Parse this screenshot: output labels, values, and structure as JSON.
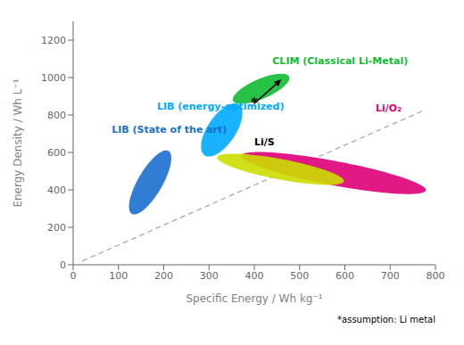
{
  "chart_data": {
    "type": "ellipse",
    "xlabel": "Specific Energy / Wh kg⁻¹",
    "ylabel": "Energy Density / Wh L⁻¹",
    "xlim": [
      0,
      800
    ],
    "ylim": [
      0,
      1300
    ],
    "xticks": [
      0,
      100,
      200,
      300,
      400,
      500,
      600,
      700,
      800
    ],
    "yticks": [
      0,
      200,
      400,
      600,
      800,
      1000,
      1200
    ],
    "footnote": "*assumption: Li metal",
    "ellipses": [
      {
        "name": "LIB (State of the art)",
        "color": "#1a6fce",
        "cx": 170,
        "cy": 440,
        "width": 60,
        "height": 350,
        "angle": -12,
        "label_x": 85,
        "label_y": 720,
        "label_color": "#1a6fce"
      },
      {
        "name": "LIB (energy-optimized)",
        "color": "#00aaff",
        "cx": 328,
        "cy": 720,
        "width": 70,
        "height": 290,
        "angle": -12,
        "label_x": 185,
        "label_y": 845,
        "label_color": "#00aaff"
      },
      {
        "name": "CLIM (Classical Li-Metal)",
        "color": "#11bb33",
        "cx": 415,
        "cy": 940,
        "width": 75,
        "height": 190,
        "angle": -35,
        "label_x": 440,
        "label_y": 1090,
        "label_color": "#11bb33"
      },
      {
        "name": "Li/O₂",
        "color": "#dd0077",
        "cx": 575,
        "cy": 490,
        "width": 450,
        "height": 120,
        "angle": -26,
        "label_x": 668,
        "label_y": 835,
        "label_color": "#dd0077"
      },
      {
        "name": "Li/S",
        "color": "#ccdd00",
        "cx": 458,
        "cy": 510,
        "width": 310,
        "height": 100,
        "angle": -27,
        "label_x": 400,
        "label_y": 655,
        "label_color": "#000000"
      }
    ],
    "dashed_line": {
      "x": [
        20,
        770
      ],
      "y": [
        20,
        820
      ],
      "color": "#aaaaaa",
      "line_style": "dashed"
    },
    "arrow": {
      "x": [
        400,
        460
      ],
      "y": [
        862,
        990
      ],
      "color": "#000000"
    },
    "marker": {
      "text": "*",
      "x": 400,
      "y": 862
    }
  }
}
